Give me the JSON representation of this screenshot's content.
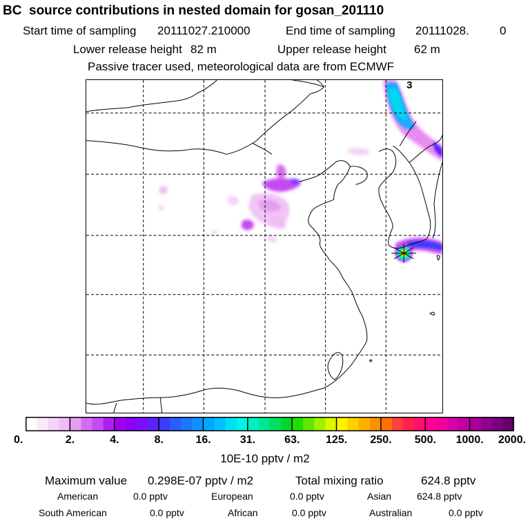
{
  "chart_data": {
    "type": "heatmap",
    "title": "BC  source contributions in nested domain for gosan_201110",
    "sampling": {
      "start_label": "Start time of sampling",
      "start_value": "20111027.210000",
      "end_label": "End time of sampling",
      "end_value": "20111028.",
      "end_suffix": "0"
    },
    "release": {
      "lower_label": "Lower release height",
      "lower_value": "82 m",
      "upper_label": "Upper release height",
      "upper_value": "62 m"
    },
    "note": "Passive tracer used, meteorological data are from ECMWF",
    "map_marker": "3",
    "colorbar": {
      "tick_labels": [
        "0.",
        "2.",
        "4.",
        "8.",
        "16.",
        "31.",
        "63.",
        "125.",
        "250.",
        "500.",
        "1000.",
        "2000."
      ],
      "colors": [
        "#ffffff",
        "#fbeafc",
        "#f5d3f8",
        "#efbdf5",
        "#e59ef1",
        "#d46cf0",
        "#c54af2",
        "#b11ef4",
        "#a000f0",
        "#8c00f5",
        "#7a0fff",
        "#5e22ff",
        "#3c3cff",
        "#2a5cff",
        "#1a78ff",
        "#1090ff",
        "#00a8ff",
        "#00c0ff",
        "#00e0f5",
        "#00f5e5",
        "#00f0c0",
        "#00e890",
        "#00e060",
        "#00d830",
        "#20e000",
        "#60e800",
        "#a0f000",
        "#d8f800",
        "#fff000",
        "#ffd000",
        "#ffb000",
        "#ff9000",
        "#ff7000",
        "#ff4040",
        "#ff2050",
        "#ff1070",
        "#ff0090",
        "#f000a0",
        "#d800a8",
        "#c000a0",
        "#a80098",
        "#900090",
        "#780080",
        "#600068"
      ],
      "unit": "10E-10 pptv / m2"
    },
    "stats": {
      "max_label": "Maximum value",
      "max_value": "0.298E-07 pptv / m2",
      "total_label": "Total mixing ratio",
      "total_value": "624.8 pptv"
    },
    "regions": {
      "american_label": "American",
      "american_value": "0.0 pptv",
      "european_label": "European",
      "european_value": "0.0 pptv",
      "asian_label": "Asian",
      "asian_value": "624.8 pptv",
      "south_american_label": "South American",
      "south_american_value": "0.0 pptv",
      "african_label": "African",
      "african_value": "0.0 pptv",
      "australian_label": "Australian",
      "australian_value": "0.0 pptv"
    }
  }
}
